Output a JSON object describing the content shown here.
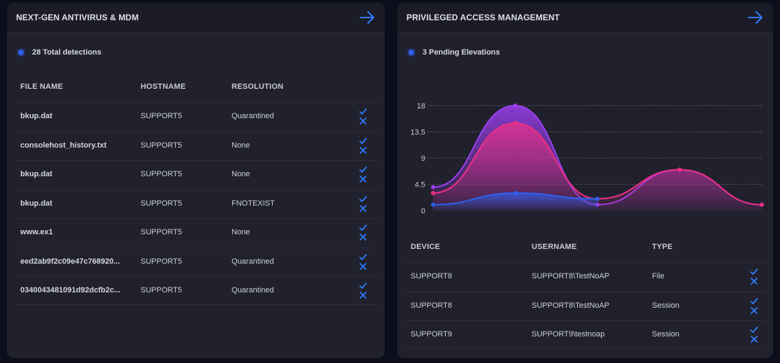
{
  "antivirus": {
    "title": "NEXT-GEN ANTIVIRUS & MDM",
    "summary": "28 Total detections",
    "columns": [
      "FILE NAME",
      "HOSTNAME",
      "RESOLUTION"
    ],
    "rows": [
      {
        "file": "bkup.dat",
        "host": "SUPPORT5",
        "resolution": "Quarantined"
      },
      {
        "file": "consolehost_history.txt",
        "host": "SUPPORT5",
        "resolution": "None"
      },
      {
        "file": "bkup.dat",
        "host": "SUPPORT5",
        "resolution": "None"
      },
      {
        "file": "bkup.dat",
        "host": "SUPPORT5",
        "resolution": "FNOTEXIST"
      },
      {
        "file": "www.ex1",
        "host": "SUPPORT5",
        "resolution": "None"
      },
      {
        "file": "eed2ab9f2c09e47c768920...",
        "host": "SUPPORT5",
        "resolution": "Quarantined"
      },
      {
        "file": "0340043481091d92dcfb2c...",
        "host": "SUPPORT5",
        "resolution": "Quarantined"
      }
    ]
  },
  "pam": {
    "title": "PRIVILEGED ACCESS MANAGEMENT",
    "summary": "3 Pending Elevations",
    "columns": [
      "DEVICE",
      "USERNAME",
      "TYPE"
    ],
    "rows": [
      {
        "device": "SUPPORT8",
        "username": "SUPPORT8\\TestNoAP",
        "type": "File"
      },
      {
        "device": "SUPPORT8",
        "username": "SUPPORT8\\TestNoAP",
        "type": "Session"
      },
      {
        "device": "SUPPORT9",
        "username": "SUPPORT9\\testnoap",
        "type": "Session"
      }
    ]
  },
  "icons": {
    "arrow": "arrow-right-icon",
    "approve": "check-icon",
    "deny": "close-icon"
  },
  "colors": {
    "accent": "#2f7bff",
    "purple": "#9b3ff0",
    "pink": "#ee2f86",
    "blue": "#2f5ff0"
  },
  "chart_data": {
    "type": "area",
    "x": [
      0,
      1,
      2,
      3,
      4
    ],
    "yticks": [
      0,
      4.5,
      9,
      13.5,
      18
    ],
    "ylim": [
      0,
      18
    ],
    "grid": true,
    "series": [
      {
        "color": "#9b3ff0",
        "values": [
          4,
          18,
          1,
          7,
          1
        ]
      },
      {
        "color": "#ee2f86",
        "values": [
          3,
          15,
          2,
          7,
          1
        ]
      },
      {
        "color": "#2f5ff0",
        "values": [
          1,
          3,
          2,
          null,
          null
        ]
      }
    ]
  }
}
